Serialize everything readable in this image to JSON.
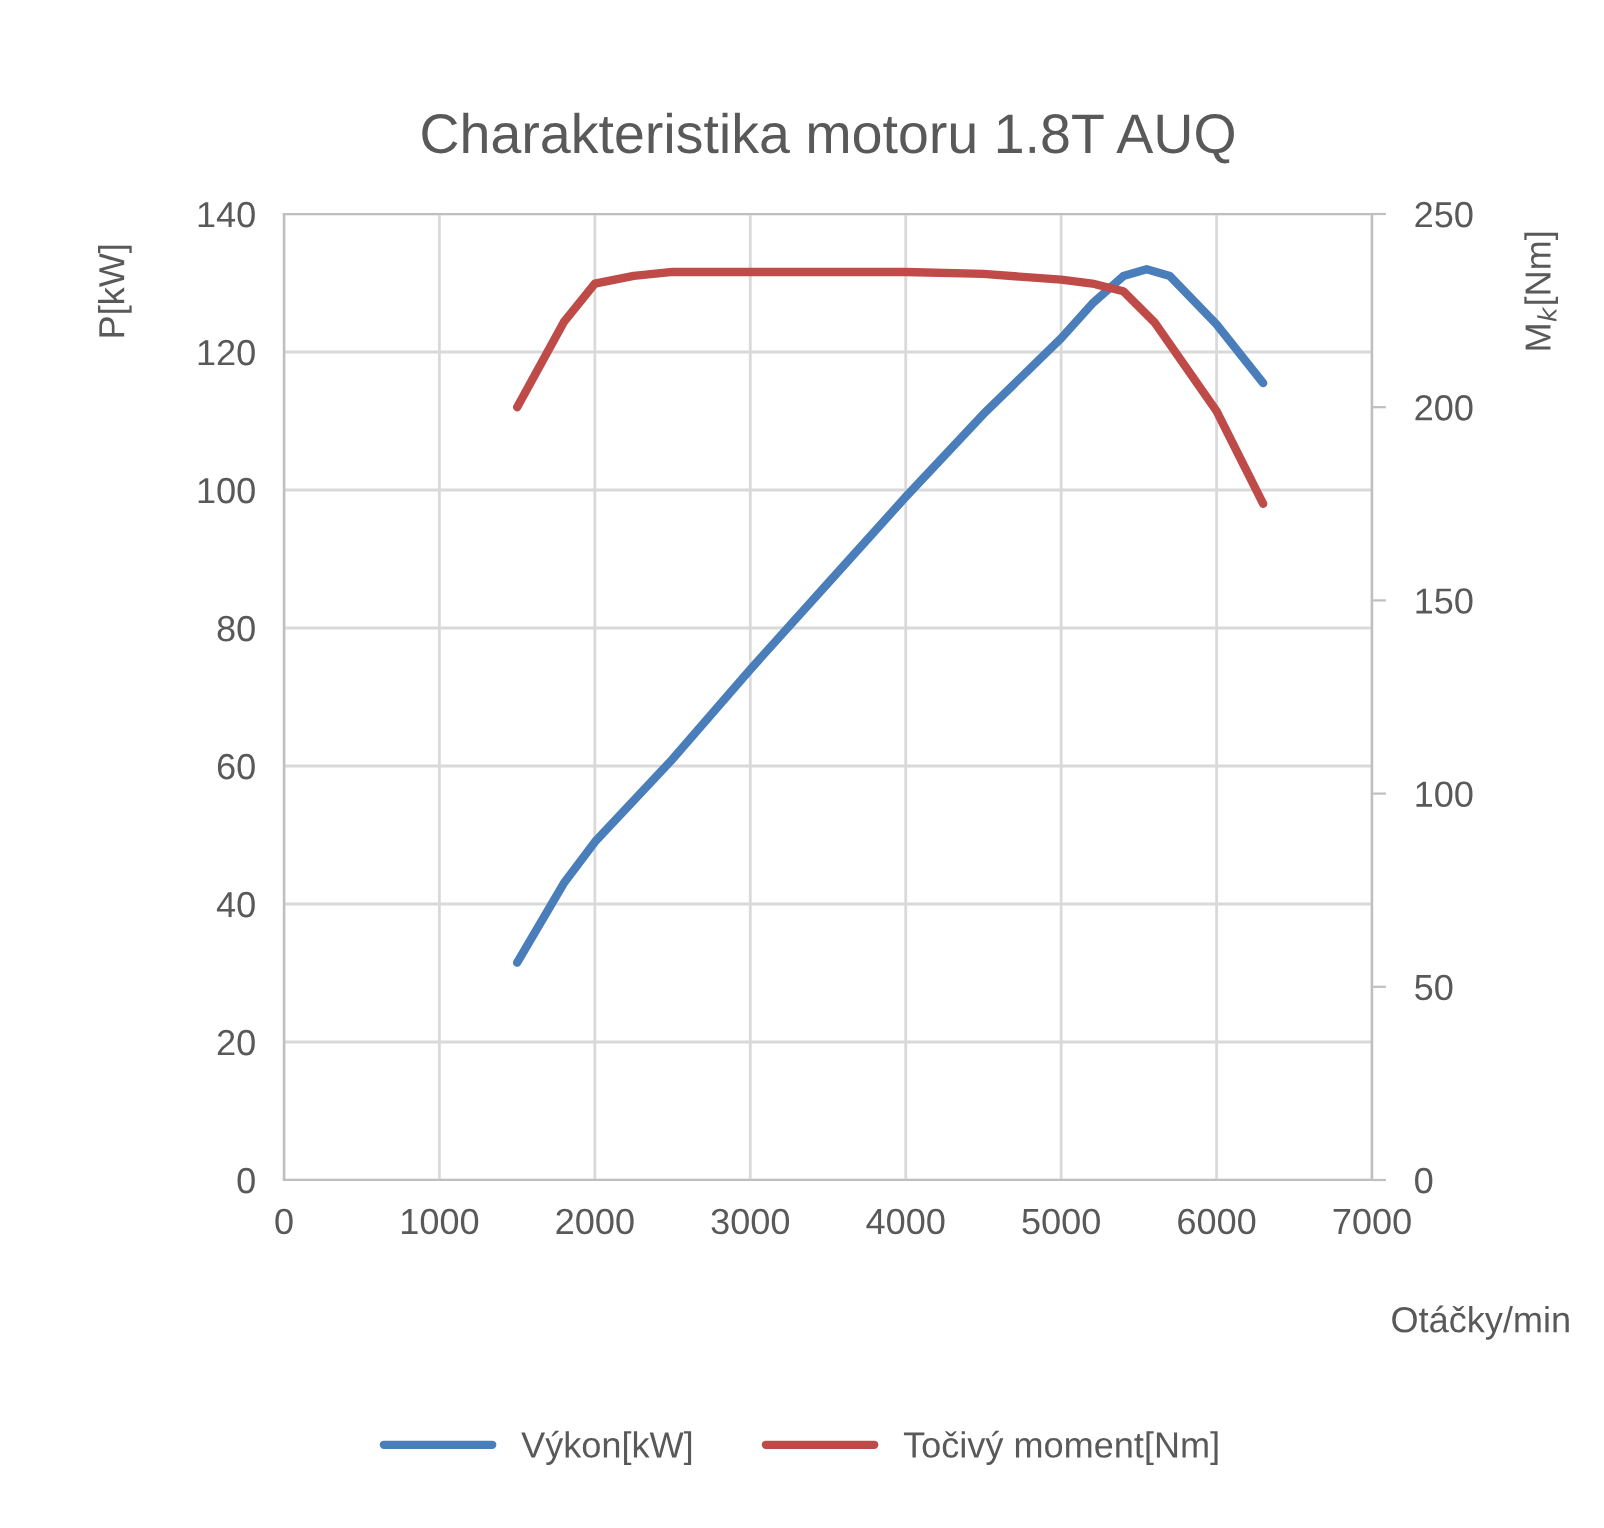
{
  "chart_data": {
    "type": "line",
    "title": "Charakteristika motoru 1.8T AUQ",
    "xlabel": "Otáčky/min",
    "ylabel": "P[kW]",
    "y2label": "M$_{k}$[Nm]",
    "xlim": [
      0,
      7000
    ],
    "xticks": [
      0,
      1000,
      2000,
      3000,
      4000,
      5000,
      6000,
      7000
    ],
    "ylim": [
      0,
      140
    ],
    "yticks": [
      0,
      20,
      40,
      60,
      80,
      100,
      120,
      140
    ],
    "y2lim": [
      0,
      250
    ],
    "y2ticks": [
      0,
      50,
      100,
      150,
      200,
      250
    ],
    "grid": true,
    "legend": "bottom",
    "marker": "none",
    "line_style": "solid",
    "series": [
      {
        "name": "Výkon[kW]",
        "color": "#4a7ebb",
        "x": [
          1500,
          1800,
          2000,
          2500,
          3000,
          3500,
          4000,
          4500,
          5000,
          5200,
          5400,
          5550,
          5700,
          6000,
          6300
        ],
        "values": [
          31.5,
          43,
          49,
          61,
          74,
          86.5,
          99,
          111,
          122,
          127,
          131,
          132,
          131,
          124,
          115.5
        ]
      },
      {
        "name": "Točivý moment[Nm]",
        "color": "#be4b48",
        "axis": "y2",
        "x": [
          1500,
          1800,
          2000,
          2250,
          2500,
          3000,
          4000,
          4500,
          5000,
          5200,
          5400,
          5600,
          6000,
          6300
        ],
        "values": [
          200,
          222,
          232,
          234,
          235,
          235,
          235,
          234.5,
          233,
          232,
          230,
          222,
          199,
          175
        ]
      }
    ]
  }
}
